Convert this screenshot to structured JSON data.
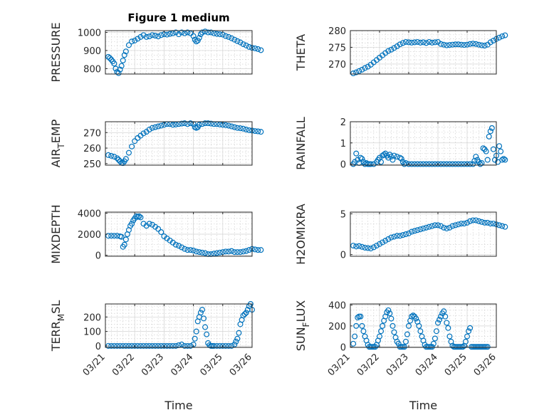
{
  "figure": {
    "title": "Figure 1 medium",
    "marker_color": "#0072BD"
  },
  "chart_data": [
    {
      "type": "scatter",
      "ylabel": "PRESSURE",
      "ylabel_sub": "",
      "ylim": [
        770,
        1010
      ],
      "yticks": [
        800,
        900,
        1000
      ],
      "x": [
        0.1,
        0.15,
        0.2,
        0.25,
        0.3,
        0.35,
        0.4,
        0.45,
        0.5,
        0.55,
        0.6,
        0.65,
        0.7,
        0.8,
        0.9,
        1.0,
        1.1,
        1.2,
        1.3,
        1.4,
        1.5,
        1.6,
        1.7,
        1.8,
        1.9,
        2.0,
        2.1,
        2.2,
        2.3,
        2.4,
        2.5,
        2.6,
        2.7,
        2.8,
        2.9,
        3.0,
        3.05,
        3.1,
        3.15,
        3.2,
        3.25,
        3.3,
        3.4,
        3.5,
        3.6,
        3.7,
        3.8,
        3.9,
        4.0,
        4.1,
        4.2,
        4.3,
        4.4,
        4.5,
        4.6,
        4.7,
        4.8,
        4.9,
        5.0,
        5.1,
        5.2,
        5.3
      ],
      "values": [
        865,
        858,
        850,
        840,
        828,
        800,
        782,
        775,
        795,
        815,
        845,
        875,
        895,
        930,
        950,
        955,
        965,
        975,
        985,
        975,
        978,
        985,
        982,
        978,
        985,
        990,
        988,
        992,
        995,
        1000,
        990,
        1000,
        995,
        1000,
        995,
        980,
        960,
        950,
        955,
        970,
        990,
        1000,
        1005,
        1000,
        1000,
        995,
        992,
        990,
        988,
        980,
        975,
        968,
        960,
        952,
        945,
        935,
        928,
        920,
        915,
        912,
        908,
        902
      ]
    },
    {
      "type": "scatter",
      "ylabel": "THETA",
      "ylabel_sub": "",
      "ylim": [
        267,
        280
      ],
      "yticks": [
        270,
        275,
        280
      ],
      "x": [
        0.1,
        0.2,
        0.3,
        0.4,
        0.5,
        0.6,
        0.7,
        0.8,
        0.9,
        1.0,
        1.1,
        1.2,
        1.3,
        1.4,
        1.5,
        1.6,
        1.7,
        1.8,
        1.9,
        2.0,
        2.1,
        2.2,
        2.3,
        2.4,
        2.5,
        2.6,
        2.7,
        2.8,
        2.9,
        3.0,
        3.1,
        3.2,
        3.3,
        3.4,
        3.5,
        3.6,
        3.7,
        3.8,
        3.9,
        4.0,
        4.1,
        4.2,
        4.3,
        4.4,
        4.5,
        4.6,
        4.7,
        4.8,
        4.9,
        5.0,
        5.1,
        5.2,
        5.3
      ],
      "values": [
        267.2,
        267.5,
        267.9,
        268.3,
        268.8,
        269.2,
        269.8,
        270.5,
        271.2,
        271.9,
        272.6,
        273.3,
        273.9,
        274.3,
        274.8,
        275.3,
        275.9,
        276.3,
        276.6,
        276.5,
        276.4,
        276.5,
        276.6,
        276.4,
        276.5,
        276.3,
        276.6,
        276.4,
        276.5,
        276.6,
        276.0,
        275.8,
        275.6,
        275.7,
        275.8,
        275.9,
        275.9,
        275.8,
        275.7,
        275.8,
        276.0,
        276.1,
        276.0,
        275.8,
        275.6,
        275.5,
        275.8,
        276.5,
        277.0,
        277.5,
        277.9,
        278.3,
        278.6
      ]
    },
    {
      "type": "scatter",
      "ylabel": "AIR",
      "ylabel_sub": "T",
      "ylabel_tail": "EMP",
      "ylim": [
        249,
        277
      ],
      "yticks": [
        250,
        260,
        270
      ],
      "x": [
        0.1,
        0.2,
        0.3,
        0.4,
        0.45,
        0.5,
        0.55,
        0.6,
        0.65,
        0.7,
        0.8,
        0.9,
        1.0,
        1.1,
        1.2,
        1.3,
        1.4,
        1.5,
        1.6,
        1.7,
        1.8,
        1.9,
        2.0,
        2.1,
        2.2,
        2.3,
        2.4,
        2.5,
        2.6,
        2.7,
        2.8,
        2.9,
        3.0,
        3.05,
        3.1,
        3.15,
        3.2,
        3.3,
        3.4,
        3.5,
        3.6,
        3.7,
        3.8,
        3.9,
        4.0,
        4.1,
        4.2,
        4.3,
        4.4,
        4.5,
        4.6,
        4.7,
        4.8,
        4.9,
        5.0,
        5.1,
        5.2,
        5.3
      ],
      "values": [
        255.5,
        255,
        254.5,
        253.5,
        252.5,
        251.5,
        250.5,
        250.3,
        251.5,
        253,
        257,
        261,
        264.5,
        266.5,
        268,
        269.5,
        270.5,
        272,
        273,
        273.5,
        274,
        274.5,
        275,
        275.5,
        275.5,
        275,
        275.2,
        275.5,
        275.8,
        276,
        275.5,
        276,
        275.5,
        273.5,
        273,
        273.5,
        275,
        275.5,
        276,
        276,
        275.8,
        275.5,
        275.5,
        275.2,
        275,
        274.8,
        274.5,
        274,
        273.5,
        273,
        272.8,
        272.5,
        272,
        271.5,
        271.3,
        271,
        270.8,
        270.5
      ]
    },
    {
      "type": "scatter",
      "ylabel": "RAINFALL",
      "ylabel_sub": "",
      "ylim": [
        -0.05,
        2.0
      ],
      "yticks": [
        0,
        1,
        2
      ],
      "x": [
        0.1,
        0.15,
        0.2,
        0.25,
        0.3,
        0.35,
        0.4,
        0.45,
        0.5,
        0.55,
        0.6,
        0.65,
        0.7,
        0.8,
        0.9,
        0.95,
        1.0,
        1.05,
        1.1,
        1.15,
        1.2,
        1.25,
        1.3,
        1.35,
        1.4,
        1.45,
        1.5,
        1.6,
        1.7,
        1.75,
        1.8,
        1.85,
        1.9,
        2.0,
        2.1,
        2.2,
        2.3,
        2.4,
        2.5,
        2.6,
        2.7,
        2.8,
        2.9,
        3.0,
        3.1,
        3.2,
        3.3,
        3.4,
        3.5,
        3.6,
        3.7,
        3.8,
        3.9,
        4.0,
        4.1,
        4.2,
        4.25,
        4.3,
        4.35,
        4.4,
        4.45,
        4.5,
        4.55,
        4.6,
        4.65,
        4.7,
        4.75,
        4.8,
        4.85,
        4.9,
        4.95,
        5.0,
        5.05,
        5.1,
        5.15,
        5.2,
        5.25,
        5.3
      ],
      "values": [
        0,
        0.1,
        0.5,
        0.2,
        0.05,
        0.3,
        0.25,
        0.1,
        0,
        0.05,
        0,
        0,
        0,
        0,
        0.1,
        0.2,
        0.3,
        0.1,
        0.4,
        0.45,
        0.5,
        0.4,
        0.3,
        0.45,
        0.35,
        0.2,
        0.4,
        0.35,
        0.3,
        0.25,
        0.1,
        0,
        0.05,
        0,
        0,
        0,
        0,
        0,
        0,
        0,
        0,
        0,
        0,
        0,
        0,
        0,
        0,
        0,
        0,
        0,
        0,
        0,
        0,
        0,
        0,
        0,
        0.15,
        0.35,
        0.2,
        0.1,
        0,
        0.05,
        0.75,
        0.7,
        0.6,
        0.2,
        1.3,
        1.55,
        1.7,
        0.7,
        0.2,
        0.4,
        0.1,
        0.85,
        0.6,
        0.2,
        0.25,
        0.2
      ]
    },
    {
      "type": "scatter",
      "ylabel": "MIXDEPTH",
      "ylabel_sub": "",
      "ylim": [
        -100,
        4100
      ],
      "yticks": [
        0,
        2000,
        4000
      ],
      "x": [
        0.1,
        0.2,
        0.3,
        0.4,
        0.5,
        0.55,
        0.6,
        0.65,
        0.7,
        0.75,
        0.8,
        0.85,
        0.9,
        0.95,
        1.0,
        1.05,
        1.1,
        1.15,
        1.2,
        1.3,
        1.4,
        1.5,
        1.6,
        1.7,
        1.8,
        1.9,
        2.0,
        2.1,
        2.2,
        2.3,
        2.4,
        2.5,
        2.6,
        2.7,
        2.8,
        2.9,
        3.0,
        3.1,
        3.2,
        3.3,
        3.4,
        3.5,
        3.6,
        3.7,
        3.8,
        3.9,
        4.0,
        4.1,
        4.2,
        4.3,
        4.4,
        4.5,
        4.6,
        4.7,
        4.8,
        4.9,
        5.0,
        5.1,
        5.2,
        5.3
      ],
      "values": [
        1850,
        1850,
        1850,
        1850,
        1800,
        1750,
        800,
        1000,
        1500,
        2000,
        2400,
        2800,
        3000,
        3300,
        3500,
        3700,
        3650,
        3700,
        3600,
        3000,
        2800,
        3000,
        2900,
        2700,
        2500,
        2200,
        1800,
        1600,
        1400,
        1200,
        1000,
        900,
        750,
        600,
        500,
        500,
        450,
        350,
        300,
        250,
        200,
        100,
        100,
        150,
        200,
        250,
        300,
        350,
        350,
        400,
        300,
        300,
        300,
        350,
        400,
        500,
        600,
        550,
        500,
        500
      ]
    },
    {
      "type": "scatter",
      "ylabel": "H2OMIXRA",
      "ylabel_sub": "",
      "ylim": [
        -0.2,
        5.2
      ],
      "yticks": [
        0,
        5
      ],
      "x": [
        0.1,
        0.2,
        0.3,
        0.4,
        0.5,
        0.6,
        0.7,
        0.8,
        0.9,
        1.0,
        1.1,
        1.2,
        1.3,
        1.4,
        1.5,
        1.6,
        1.7,
        1.8,
        1.9,
        2.0,
        2.1,
        2.2,
        2.3,
        2.4,
        2.5,
        2.6,
        2.7,
        2.8,
        2.9,
        3.0,
        3.1,
        3.2,
        3.3,
        3.4,
        3.5,
        3.6,
        3.7,
        3.8,
        3.9,
        4.0,
        4.1,
        4.2,
        4.3,
        4.4,
        4.5,
        4.6,
        4.7,
        4.8,
        4.9,
        5.0,
        5.1,
        5.2,
        5.3
      ],
      "values": [
        1.1,
        1.0,
        1.05,
        0.95,
        0.85,
        0.8,
        0.75,
        0.9,
        1.1,
        1.3,
        1.5,
        1.7,
        1.9,
        2.1,
        2.2,
        2.3,
        2.3,
        2.4,
        2.5,
        2.6,
        2.8,
        2.9,
        3.0,
        3.1,
        3.2,
        3.3,
        3.4,
        3.5,
        3.6,
        3.6,
        3.5,
        3.3,
        3.2,
        3.3,
        3.5,
        3.6,
        3.7,
        3.8,
        3.8,
        3.9,
        4.1,
        4.2,
        4.2,
        4.1,
        4.0,
        3.9,
        3.9,
        3.8,
        3.8,
        3.7,
        3.6,
        3.5,
        3.4
      ]
    },
    {
      "type": "scatter",
      "ylabel": "TERR",
      "ylabel_sub": "M",
      "ylabel_tail": "SL",
      "ylim": [
        -10,
        290
      ],
      "yticks": [
        0,
        100,
        200
      ],
      "x": [
        0.1,
        0.2,
        0.3,
        0.4,
        0.5,
        0.6,
        0.7,
        0.8,
        0.9,
        1.0,
        1.1,
        1.2,
        1.3,
        1.4,
        1.5,
        1.6,
        1.7,
        1.8,
        1.9,
        2.0,
        2.1,
        2.2,
        2.3,
        2.4,
        2.5,
        2.6,
        2.7,
        2.8,
        2.9,
        3.0,
        3.05,
        3.1,
        3.15,
        3.2,
        3.25,
        3.3,
        3.35,
        3.4,
        3.45,
        3.5,
        3.55,
        3.6,
        3.65,
        3.7,
        3.8,
        3.9,
        4.0,
        4.1,
        4.2,
        4.3,
        4.4,
        4.45,
        4.5,
        4.55,
        4.6,
        4.65,
        4.7,
        4.75,
        4.8,
        4.85,
        4.9,
        4.95,
        5.0
      ],
      "values": [
        0,
        0,
        0,
        0,
        0,
        0,
        0,
        0,
        0,
        0,
        0,
        0,
        0,
        0,
        0,
        0,
        0,
        0,
        0,
        0,
        0,
        0,
        0,
        0,
        5,
        10,
        0,
        0,
        0,
        10,
        50,
        100,
        170,
        200,
        230,
        250,
        190,
        130,
        80,
        20,
        5,
        0,
        0,
        0,
        0,
        0,
        0,
        0,
        0,
        0,
        10,
        30,
        50,
        90,
        150,
        180,
        210,
        220,
        230,
        250,
        275,
        290,
        250
      ]
    },
    {
      "type": "scatter",
      "ylabel": "SUN",
      "ylabel_sub": "F",
      "ylabel_tail": "LUX",
      "ylim": [
        -5,
        410
      ],
      "yticks": [
        0,
        200,
        400
      ],
      "x": [
        0.1,
        0.15,
        0.2,
        0.25,
        0.3,
        0.35,
        0.4,
        0.45,
        0.5,
        0.55,
        0.6,
        0.65,
        0.7,
        0.75,
        0.8,
        0.85,
        0.9,
        0.95,
        1.0,
        1.05,
        1.1,
        1.15,
        1.2,
        1.25,
        1.3,
        1.35,
        1.4,
        1.45,
        1.5,
        1.55,
        1.6,
        1.65,
        1.7,
        1.75,
        1.8,
        1.85,
        1.9,
        1.95,
        2.0,
        2.05,
        2.1,
        2.15,
        2.2,
        2.25,
        2.3,
        2.35,
        2.4,
        2.45,
        2.5,
        2.55,
        2.6,
        2.65,
        2.7,
        2.75,
        2.8,
        2.85,
        2.9,
        2.95,
        3.0,
        3.05,
        3.1,
        3.15,
        3.2,
        3.25,
        3.3,
        3.35,
        3.4,
        3.45,
        3.5,
        3.55,
        3.6,
        3.65,
        3.7,
        3.75,
        3.8,
        3.85,
        3.9,
        3.95,
        4.0,
        4.05,
        4.1,
        4.15,
        4.2,
        4.25,
        4.3,
        4.35,
        4.4,
        4.45,
        4.5,
        4.55,
        4.6,
        4.65,
        4.7
      ],
      "values": [
        30,
        100,
        200,
        280,
        290,
        290,
        200,
        150,
        100,
        60,
        20,
        0,
        0,
        0,
        0,
        0,
        20,
        60,
        100,
        150,
        200,
        250,
        290,
        330,
        350,
        320,
        270,
        200,
        140,
        90,
        50,
        30,
        0,
        0,
        0,
        0,
        50,
        120,
        200,
        250,
        290,
        300,
        290,
        270,
        240,
        200,
        150,
        100,
        60,
        20,
        0,
        0,
        0,
        0,
        0,
        30,
        80,
        150,
        230,
        260,
        290,
        320,
        340,
        290,
        230,
        180,
        100,
        50,
        10,
        0,
        0,
        0,
        0,
        0,
        0,
        0,
        10,
        50,
        100,
        150,
        180,
        0,
        0,
        0,
        0,
        0,
        0,
        0,
        0,
        0,
        0,
        0,
        0
      ]
    }
  ],
  "axes_common": {
    "xlim": [
      0,
      5
    ],
    "xticks": [
      "03/21",
      "03/22",
      "03/23",
      "03/24",
      "03/25",
      "03/26"
    ],
    "xlabel": "Time"
  }
}
